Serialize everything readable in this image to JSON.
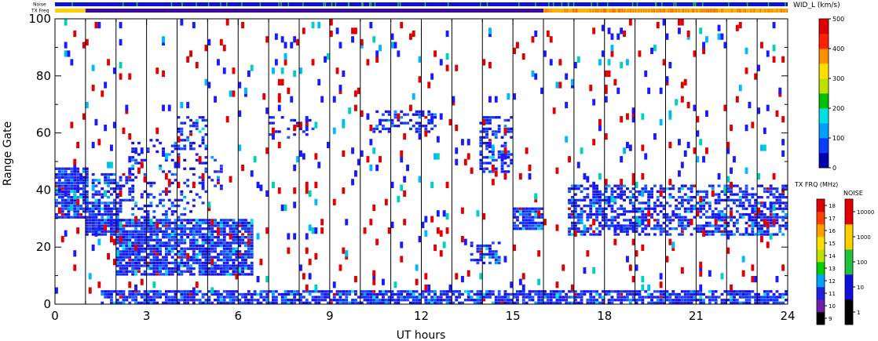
{
  "chart_data": {
    "type": "heatmap",
    "xlabel": "UT hours",
    "ylabel": "Range Gate",
    "xlim": [
      0,
      24
    ],
    "ylim": [
      0,
      100
    ],
    "x_ticks": [
      "0",
      "3",
      "6",
      "9",
      "12",
      "15",
      "18",
      "21",
      "24"
    ],
    "y_ticks": [
      "0",
      "20",
      "40",
      "60",
      "80",
      "100"
    ],
    "vertical_grid_hours": [
      1,
      2,
      3,
      4,
      5,
      6,
      7,
      8,
      9,
      10,
      11,
      12,
      13,
      14,
      15,
      16,
      17,
      18,
      19,
      20,
      21,
      22,
      23
    ],
    "status_bars": {
      "noise_label": "Noise",
      "txfreq_label": "TX Freq",
      "noise_color": "#1010dd",
      "noise_spike_color": "#20c040",
      "txfreq_segments": [
        {
          "x0": 0,
          "x1": 1,
          "color": "#ffd000"
        },
        {
          "x0": 1,
          "x1": 16,
          "color": "#3b0aa0"
        },
        {
          "x0": 16,
          "x1": 24,
          "color": "#ffb000"
        }
      ]
    },
    "scatter_regions": [
      {
        "x0": 0.0,
        "x1": 1.05,
        "y0": 30,
        "y1": 48,
        "density": 0.85
      },
      {
        "x0": 1.0,
        "x1": 2.2,
        "y0": 24,
        "y1": 36,
        "density": 0.85
      },
      {
        "x0": 1.2,
        "x1": 2.6,
        "y0": 36,
        "y1": 46,
        "density": 0.5
      },
      {
        "x0": 2.0,
        "x1": 6.5,
        "y0": 10,
        "y1": 30,
        "density": 0.85
      },
      {
        "x0": 2.5,
        "x1": 5.0,
        "y0": 30,
        "y1": 58,
        "density": 0.2
      },
      {
        "x0": 4.0,
        "x1": 5.0,
        "y0": 54,
        "y1": 66,
        "density": 0.3
      },
      {
        "x0": 5.0,
        "x1": 5.5,
        "y0": 40,
        "y1": 52,
        "density": 0.3
      },
      {
        "x0": 7.0,
        "x1": 8.5,
        "y0": 58,
        "y1": 66,
        "density": 0.2
      },
      {
        "x0": 10.4,
        "x1": 12.5,
        "y0": 60,
        "y1": 68,
        "density": 0.45
      },
      {
        "x0": 13.9,
        "x1": 15.0,
        "y0": 46,
        "y1": 66,
        "density": 0.45
      },
      {
        "x0": 13.6,
        "x1": 14.6,
        "y0": 14,
        "y1": 22,
        "density": 0.55
      },
      {
        "x0": 15.0,
        "x1": 16.0,
        "y0": 26,
        "y1": 34,
        "density": 0.85
      },
      {
        "x0": 16.8,
        "x1": 24.0,
        "y0": 24,
        "y1": 42,
        "density": 0.55
      },
      {
        "x0": 1.5,
        "x1": 24.0,
        "y0": 0,
        "y1": 5,
        "density": 0.75
      },
      {
        "x0": 0.0,
        "x1": 24.0,
        "y0": 5,
        "y1": 100,
        "density": 0.025
      }
    ],
    "color_scales": [
      {
        "title": "WID_L (km/s)",
        "ticks": [
          "0",
          "100",
          "200",
          "300",
          "400",
          "500"
        ],
        "range": [
          0,
          500
        ],
        "colors": [
          "#0000b0",
          "#0a3cff",
          "#00a0ff",
          "#00e0e0",
          "#00c000",
          "#c0e000",
          "#ffe000",
          "#ff9000",
          "#ff2000",
          "#e00000"
        ]
      },
      {
        "title": "TX FRQ (MHz)",
        "ticks": [
          "9",
          "10",
          "11",
          "12",
          "13",
          "14",
          "15",
          "16",
          "17",
          "18"
        ],
        "range": [
          9,
          18
        ],
        "colors": [
          "#000000",
          "#6b1fa8",
          "#2020e0",
          "#00a0ff",
          "#00d000",
          "#c0e000",
          "#ffe000",
          "#ffa000",
          "#ff4000",
          "#e00000"
        ]
      },
      {
        "title": "NOISE",
        "ticks": [
          "1",
          "10",
          "100",
          "1000",
          "10000"
        ],
        "range": [
          1,
          10000
        ],
        "log": true,
        "colors": [
          "#000000",
          "#1010dd",
          "#20c040",
          "#ffd000",
          "#e00000"
        ]
      }
    ]
  }
}
